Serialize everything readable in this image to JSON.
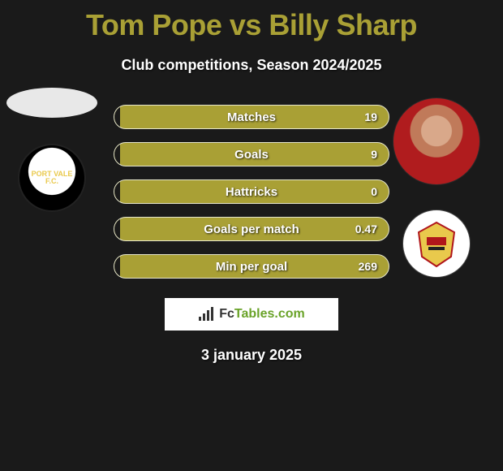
{
  "title": "Tom Pope vs Billy Sharp",
  "title_color": "#a9a035",
  "subtitle": "Club competitions, Season 2024/2025",
  "background_color": "#1a1a1a",
  "stats": {
    "bar_fill_color": "#a9a035",
    "bar_border_color": "#e6e6cc",
    "left_fill_color": "#1a1a1a",
    "label_color": "#ffffff",
    "value_color": "#ffffff",
    "label_fontsize": 15,
    "value_fontsize": 14,
    "rows": [
      {
        "label": "Matches",
        "value": "19",
        "left_pct": 2
      },
      {
        "label": "Goals",
        "value": "9",
        "left_pct": 2
      },
      {
        "label": "Hattricks",
        "value": "0",
        "left_pct": 2
      },
      {
        "label": "Goals per match",
        "value": "0.47",
        "left_pct": 2
      },
      {
        "label": "Min per goal",
        "value": "269",
        "left_pct": 2
      }
    ]
  },
  "left_column": {
    "placeholder_shape": "oval",
    "club": "Port Vale"
  },
  "right_column": {
    "player": "Billy Sharp",
    "club": "Doncaster Rovers"
  },
  "footer": {
    "brand_prefix": "Fc",
    "brand_rest": "Tables.com",
    "brand_icon": "signal-bars-icon",
    "date": "3 january 2025"
  }
}
